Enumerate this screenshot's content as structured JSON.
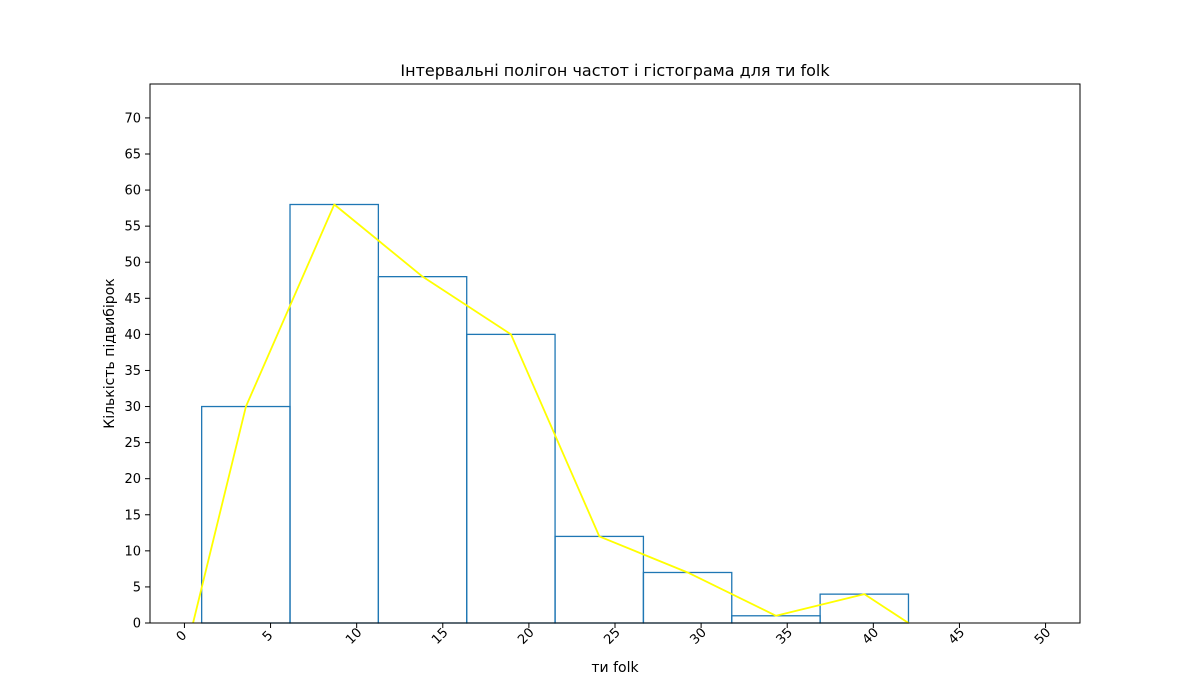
{
  "chart_data": {
    "type": "histogram",
    "title": "Інтервальні полігон частот і гістограма для ти folk",
    "xlabel": "ти folk",
    "ylabel": "Кількість підвибірок",
    "xlim": [
      -2,
      52
    ],
    "ylim": [
      0,
      74.7
    ],
    "xticks": [
      0,
      5,
      10,
      15,
      20,
      25,
      30,
      35,
      40,
      45,
      50
    ],
    "yticks": [
      0,
      5,
      10,
      15,
      20,
      25,
      30,
      35,
      40,
      45,
      50,
      55,
      60,
      65,
      70
    ],
    "grid": false,
    "legend": "none",
    "histogram": {
      "color": "#1f77b4",
      "bin_edges": [
        1.0,
        6.13,
        11.26,
        16.39,
        21.52,
        26.65,
        31.78,
        36.91,
        42.04
      ],
      "counts": [
        30,
        58,
        48,
        40,
        12,
        7,
        1,
        4
      ]
    },
    "polygon": {
      "color": "#ffff00",
      "x": [
        0.5,
        3.57,
        8.7,
        13.83,
        18.96,
        24.09,
        29.22,
        34.35,
        39.48,
        42.04
      ],
      "y": [
        0,
        30,
        58,
        48,
        40,
        12,
        7,
        1,
        4,
        0
      ]
    }
  }
}
